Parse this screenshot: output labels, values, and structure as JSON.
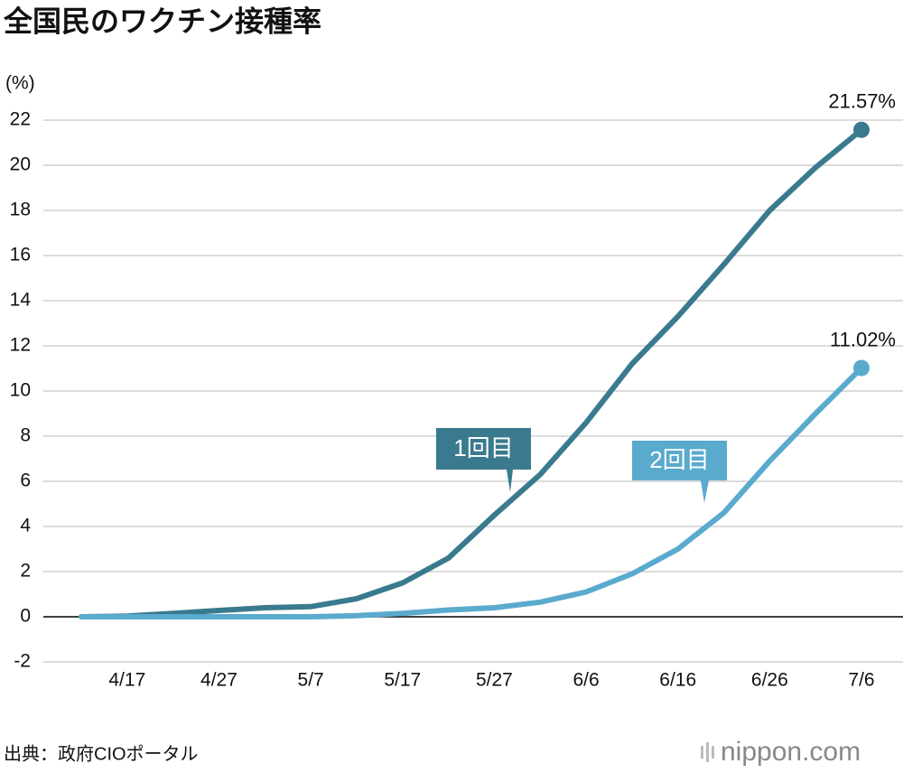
{
  "chart_data": {
    "type": "line",
    "title": "全国民のワクチン接種率",
    "y_label": "(%)",
    "source": "出典：政府CIOポータル",
    "brand": "nippon.com",
    "categories": [
      null,
      "4/17",
      null,
      "4/27",
      null,
      "5/7",
      null,
      "5/17",
      null,
      "5/27",
      null,
      "6/6",
      null,
      "6/16",
      null,
      "6/26",
      null,
      "7/6"
    ],
    "series": [
      {
        "name": "1回目",
        "color": "#3a7a8e",
        "values": [
          0,
          0.03,
          0.15,
          0.28,
          0.4,
          0.45,
          0.8,
          1.5,
          2.6,
          4.5,
          6.3,
          8.6,
          11.2,
          13.3,
          15.6,
          18.0,
          19.9,
          21.57
        ],
        "value_labels": [
          null,
          null,
          null,
          null,
          null,
          null,
          null,
          null,
          null,
          null,
          null,
          null,
          null,
          null,
          null,
          null,
          null,
          "21.57%"
        ]
      },
      {
        "name": "2回目",
        "color": "#5aaacd",
        "values": [
          0,
          0,
          0,
          0,
          0,
          0,
          0.05,
          0.15,
          0.3,
          0.4,
          0.65,
          1.1,
          1.9,
          3.0,
          4.6,
          6.9,
          9.0,
          11.02
        ],
        "value_labels": [
          null,
          null,
          null,
          null,
          null,
          null,
          null,
          null,
          null,
          null,
          null,
          null,
          null,
          null,
          null,
          null,
          null,
          "11.02%"
        ]
      }
    ],
    "ylim": [
      -2,
      22
    ],
    "yticks": [
      -2,
      0,
      2,
      4,
      6,
      8,
      10,
      12,
      14,
      16,
      18,
      20,
      22
    ],
    "grid": true
  }
}
